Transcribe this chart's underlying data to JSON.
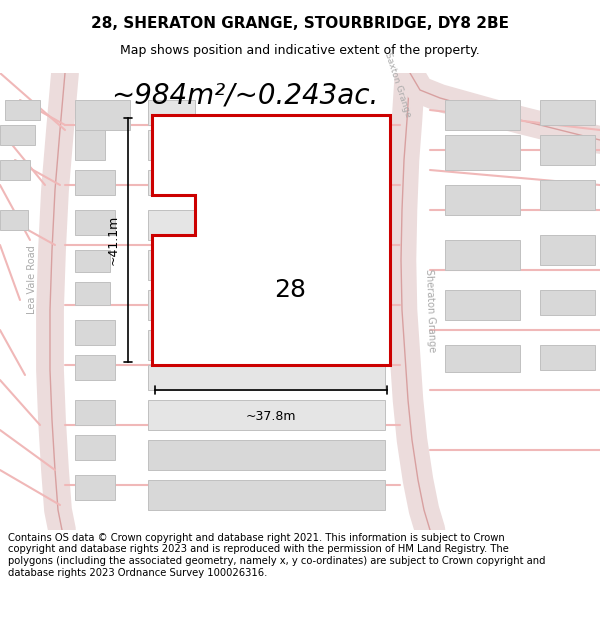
{
  "title": "28, SHERATON GRANGE, STOURBRIDGE, DY8 2BE",
  "subtitle": "Map shows position and indicative extent of the property.",
  "area_text": "~984m²/~0.243ac.",
  "property_number": "28",
  "dim_height": "~41.1m",
  "dim_width": "~37.8m",
  "road_label_saxton": "Saxton Grange",
  "road_label_sheraton": "Sheraton Grange",
  "road_label_lea": "Lea Vale Road",
  "footer_text": "Contains OS data © Crown copyright and database right 2021. This information is subject to Crown copyright and database rights 2023 and is reproduced with the permission of HM Land Registry. The polygons (including the associated geometry, namely x, y co-ordinates) are subject to Crown copyright and database rights 2023 Ordnance Survey 100026316.",
  "road_color": "#f0b8b8",
  "road_lw": 1.5,
  "building_fc": "#d8d8d8",
  "building_ec": "#c0c0c0",
  "property_ec": "#cc0000",
  "property_lw": 2.2,
  "map_bg": "#f8f8f8",
  "title_fs": 11,
  "subtitle_fs": 9,
  "area_fs": 20,
  "num_fs": 18,
  "dim_fs": 9,
  "road_label_fs": 7.5,
  "footer_fs": 7.2
}
